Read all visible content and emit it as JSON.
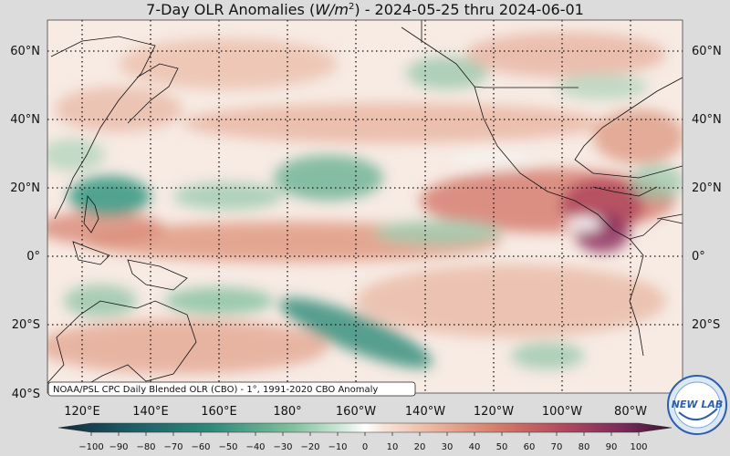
{
  "title": {
    "prefix": "7-Day OLR Anomalies (",
    "unit_base": "W/m",
    "unit_exp": "2",
    "suffix": ") - 2024-05-25 thru 2024-06-01"
  },
  "map": {
    "lat_labels": [
      "60°N",
      "40°N",
      "20°N",
      "0°",
      "20°S",
      "40°S"
    ],
    "lat_values": [
      60,
      40,
      20,
      0,
      -20,
      -40
    ],
    "lon_labels": [
      "120°E",
      "140°E",
      "160°E",
      "180°",
      "160°W",
      "140°W",
      "120°W",
      "100°W",
      "80°W"
    ],
    "lon_values": [
      120,
      140,
      160,
      180,
      200,
      220,
      240,
      260,
      280
    ],
    "lat_range": [
      -40,
      68
    ],
    "lon_range": [
      105,
      295
    ]
  },
  "source_note": "NOAA/PSL CPC Daily Blended OLR (CBO) - 1°, 1991-2020 CBO Anomaly",
  "colorbar": {
    "ticks": [
      "-100",
      "-90",
      "-80",
      "-70",
      "-60",
      "-50",
      "-40",
      "-30",
      "-20",
      "-10",
      "0",
      "10",
      "20",
      "30",
      "40",
      "50",
      "60",
      "70",
      "80",
      "90",
      "100"
    ],
    "min": -100,
    "max": 100
  },
  "logo": {
    "text": "NEW LAB"
  }
}
